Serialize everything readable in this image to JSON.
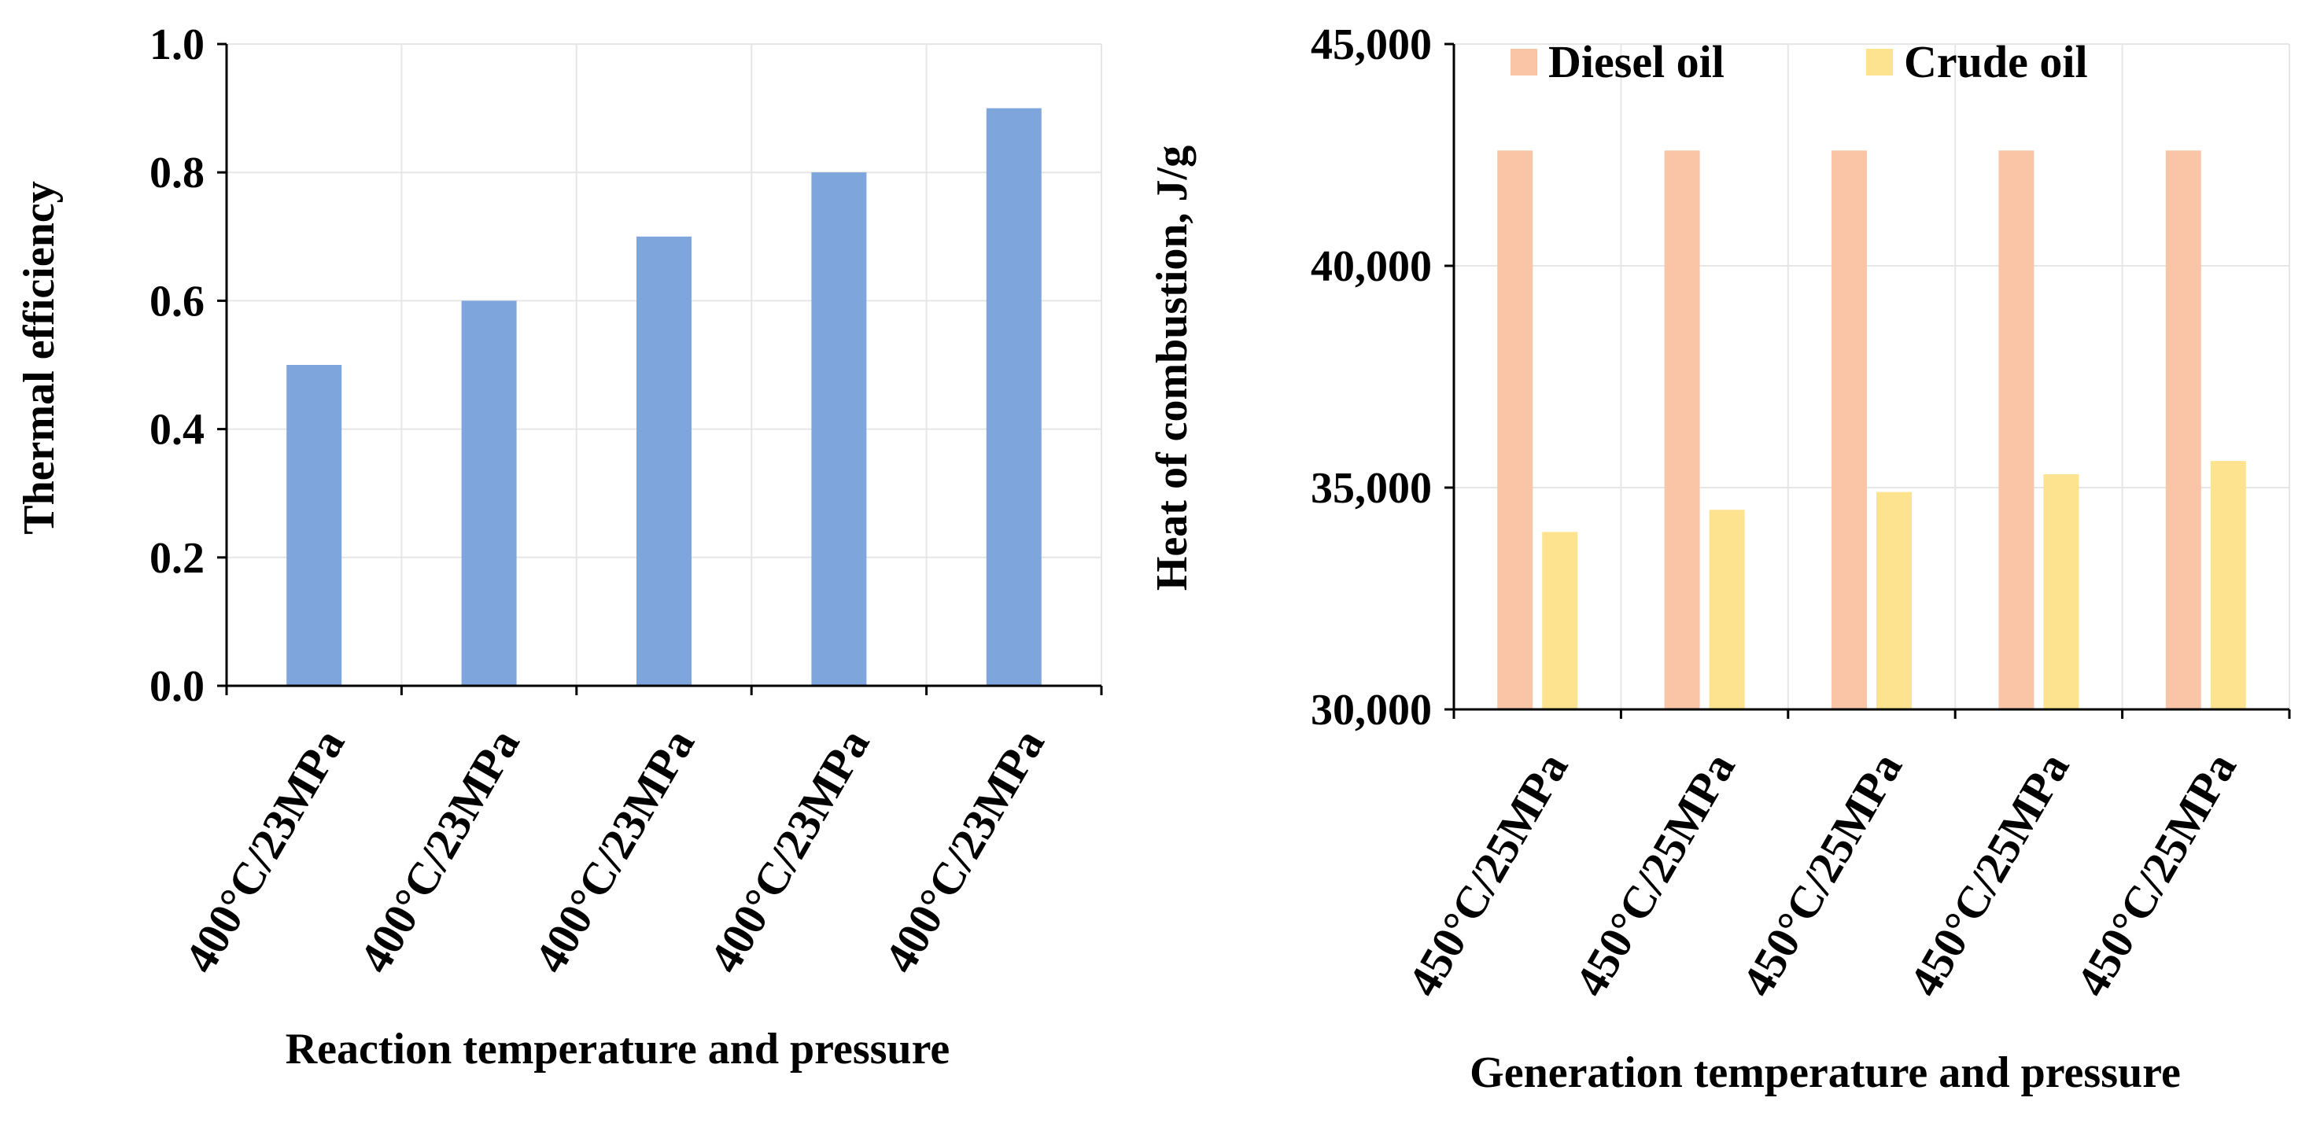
{
  "chart_data": [
    {
      "type": "bar",
      "title": "",
      "categories": [
        "400°C/23MPa",
        "400°C/23MPa",
        "400°C/23MPa",
        "400°C/23MPa",
        "400°C/23MPa"
      ],
      "series": [
        {
          "name": "Thermal efficiency",
          "values": [
            0.5,
            0.6,
            0.7,
            0.8,
            0.9
          ],
          "color": "#7ea6dc"
        }
      ],
      "ylim": [
        0,
        1.0
      ],
      "yticks": [
        "0.0",
        "0.2",
        "0.4",
        "0.6",
        "0.8",
        "1.0"
      ],
      "xlabel": "Reaction temperature and pressure",
      "ylabel": "Thermal efficiency",
      "grid": true,
      "legend": "none"
    },
    {
      "type": "bar",
      "title": "",
      "categories": [
        "450°C/25MPa",
        "450°C/25MPa",
        "450°C/25MPa",
        "450°C/25MPa",
        "450°C/25MPa"
      ],
      "series": [
        {
          "name": "Diesel oil",
          "values": [
            42600,
            42600,
            42600,
            42600,
            42600
          ],
          "color": "#f9c5a6"
        },
        {
          "name": "Crude oil",
          "values": [
            34000,
            34500,
            34900,
            35300,
            35600
          ],
          "color": "#fde38f"
        }
      ],
      "ylim": [
        30000,
        45000
      ],
      "yticks": [
        "30,000",
        "35,000",
        "40,000",
        "45,000"
      ],
      "xlabel": "Generation temperature and pressure",
      "ylabel": "Heat of combustion, J/g",
      "grid": true,
      "legend": "top"
    }
  ]
}
